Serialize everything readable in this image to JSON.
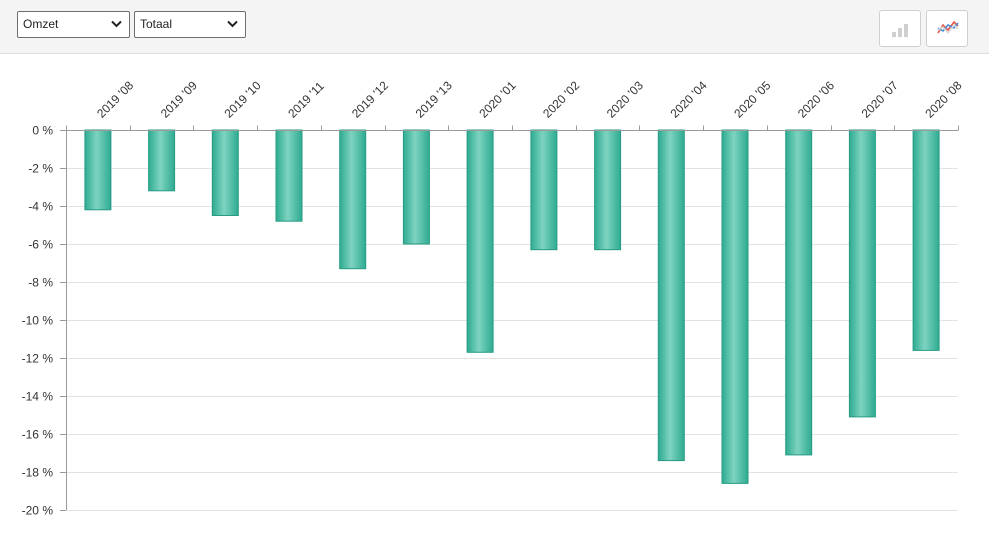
{
  "toolbar": {
    "metric_select": {
      "value": "Omzet"
    },
    "segment_select": {
      "value": "Totaal"
    },
    "bar_chart_button": {
      "icon": "bar-chart-icon"
    },
    "line_chart_button": {
      "icon": "line-chart-icon"
    }
  },
  "colors": {
    "bar_fill_light": "#7ed3c0",
    "bar_fill_dark": "#2eab91",
    "bar_stroke": "#279c83",
    "grid": "#e3e3e3",
    "axis": "#999999"
  },
  "chart_data": {
    "type": "bar",
    "categories": [
      "2019 '08",
      "2019 '09",
      "2019 '10",
      "2019 '11",
      "2019 '12",
      "2019 '13",
      "2020 '01",
      "2020 '02",
      "2020 '03",
      "2020 '04",
      "2020 '05",
      "2020 '06",
      "2020 '07",
      "2020 '08"
    ],
    "series": [
      {
        "values": [
          -4.2,
          -3.2,
          -4.5,
          -4.8,
          -7.3,
          -6.0,
          -11.7,
          -6.3,
          -6.3,
          -17.4,
          -18.6,
          -17.1,
          -15.1,
          -11.6
        ]
      }
    ],
    "ylim": [
      -20,
      0
    ],
    "yticks": [
      0,
      -2,
      -4,
      -6,
      -8,
      -10,
      -12,
      -14,
      -16,
      -18,
      -20
    ],
    "ytick_labels": [
      "0 %",
      "-2 %",
      "-4 %",
      "-6 %",
      "-8 %",
      "-10 %",
      "-12 %",
      "-14 %",
      "-16 %",
      "-18 %",
      "-20 %"
    ],
    "x_axis_position": "top",
    "grid": true,
    "legend": "none"
  }
}
